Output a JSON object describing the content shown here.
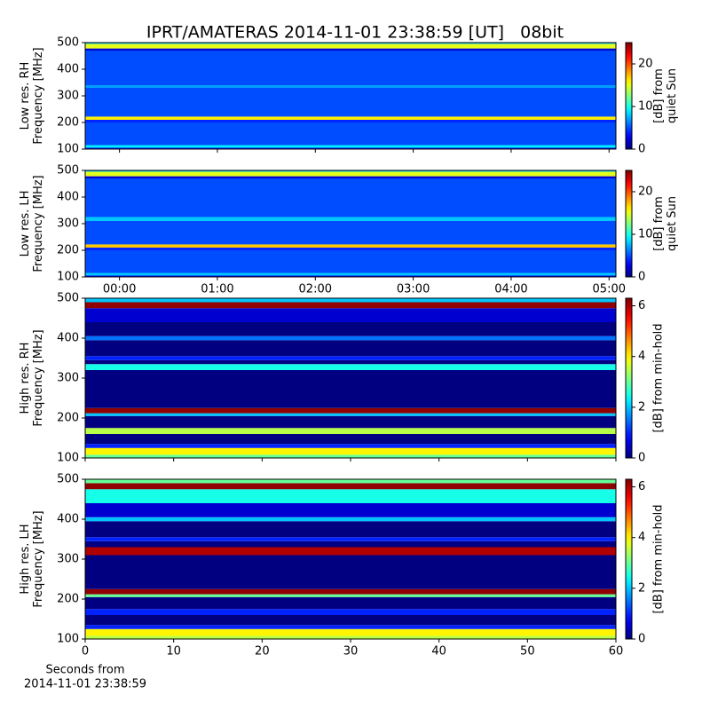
{
  "chart_data": [
    {
      "type": "heatmap",
      "title": "IPRT/AMATERAS 2014-11-01 23:38:59 [UT]   08bit",
      "ylabel": [
        "Low res. RH",
        "Frequency [MHz]"
      ],
      "cbar_label": [
        "[dB] from",
        "quiet Sun"
      ],
      "xlim": [
        -0.35,
        5.07
      ],
      "xticks": [
        0,
        1,
        2,
        3,
        4,
        5
      ],
      "ylim": [
        100,
        500
      ],
      "yticks": [
        100,
        200,
        300,
        400,
        500
      ],
      "clim": [
        0,
        25
      ],
      "cticks": [
        0,
        10,
        20
      ],
      "colormap": "jet",
      "bands": {
        "edges": [
          100,
          105,
          115,
          200,
          210,
          222,
          330,
          340,
          470,
          478,
          495,
          500
        ],
        "values": [
          3,
          9,
          5,
          4,
          16,
          5,
          7,
          5,
          2,
          15,
          8
        ]
      }
    },
    {
      "type": "heatmap",
      "ylabel": [
        "Low res. LH",
        "Frequency [MHz]"
      ],
      "cbar_label": [
        "[dB] from",
        "quiet Sun"
      ],
      "xlim": [
        -0.35,
        5.07
      ],
      "xticks": [
        {
          "value": 0,
          "label": "00:00"
        },
        {
          "value": 1,
          "label": "01:00"
        },
        {
          "value": 2,
          "label": "02:00"
        },
        {
          "value": 3,
          "label": "03:00"
        },
        {
          "value": 4,
          "label": "04:00"
        },
        {
          "value": 5,
          "label": "05:00"
        }
      ],
      "ylim": [
        100,
        500
      ],
      "yticks": [
        100,
        200,
        300,
        400,
        500
      ],
      "clim": [
        0,
        25
      ],
      "cticks": [
        0,
        10,
        20
      ],
      "colormap": "jet",
      "bands": {
        "edges": [
          100,
          105,
          115,
          200,
          210,
          222,
          310,
          325,
          470,
          478,
          495,
          500
        ],
        "values": [
          3,
          8,
          5,
          4,
          17,
          5,
          8,
          5,
          2,
          15,
          8
        ]
      }
    },
    {
      "type": "heatmap",
      "ylabel": [
        "High res. RH",
        "Frequency [MHz]"
      ],
      "cbar_label": [
        "[dB] from min-hold"
      ],
      "xlim": [
        0,
        60
      ],
      "xticks": [
        0,
        10,
        20,
        30,
        40,
        50,
        60
      ],
      "ylim": [
        100,
        500
      ],
      "yticks": [
        100,
        200,
        300,
        400,
        500
      ],
      "clim": [
        0,
        6.3
      ],
      "cticks": [
        0,
        2,
        4,
        6
      ],
      "colormap": "jet",
      "bands": {
        "edges": [
          100,
          108,
          125,
          135,
          160,
          175,
          205,
          212,
          225,
          320,
          335,
          345,
          355,
          395,
          405,
          440,
          475,
          490,
          500
        ],
        "values": [
          3,
          4,
          1,
          0,
          3.5,
          0,
          2,
          6.2,
          0,
          2.5,
          0,
          1,
          0,
          1.5,
          0,
          0.5,
          6.2,
          2
        ]
      }
    },
    {
      "type": "heatmap",
      "ylabel": [
        "High res. LH",
        "Frequency [MHz]"
      ],
      "cbar_label": [
        "[dB] from min-hold"
      ],
      "xlabel": [
        "Seconds from",
        "2014-11-01 23:38:59"
      ],
      "xlim": [
        0,
        60
      ],
      "xticks": [
        0,
        10,
        20,
        30,
        40,
        50,
        60
      ],
      "ylim": [
        100,
        500
      ],
      "yticks": [
        100,
        200,
        300,
        400,
        500
      ],
      "clim": [
        0,
        6.3
      ],
      "cticks": [
        0,
        2,
        4,
        6
      ],
      "colormap": "jet",
      "bands": {
        "edges": [
          100,
          108,
          125,
          135,
          160,
          175,
          205,
          212,
          225,
          310,
          330,
          345,
          355,
          395,
          405,
          440,
          475,
          490,
          500
        ],
        "values": [
          3.5,
          4,
          1,
          0,
          1,
          0,
          3,
          6.2,
          0,
          6,
          0,
          1,
          0,
          2,
          0.5,
          2.5,
          6.2,
          3
        ]
      }
    }
  ]
}
